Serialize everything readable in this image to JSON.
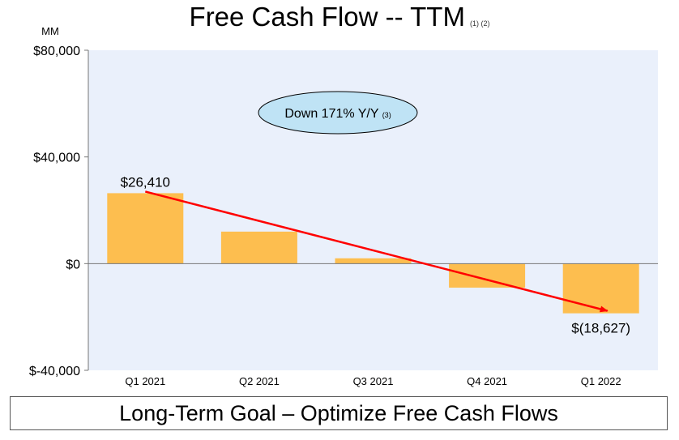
{
  "chart_data": {
    "type": "bar",
    "title": "Free Cash Flow -- TTM",
    "title_footnote": "(1) (2)",
    "ylabel": "MM",
    "ylim": [
      -40000,
      80000
    ],
    "yticks": [
      -40000,
      0,
      40000,
      80000
    ],
    "ytick_labels": [
      "$-40,000",
      "$0",
      "$40,000",
      "$80,000"
    ],
    "categories": [
      "Q1 2021",
      "Q2 2021",
      "Q3 2021",
      "Q4 2021",
      "Q1 2022"
    ],
    "values": [
      26410,
      12000,
      2000,
      -9000,
      -18627
    ],
    "data_labels": [
      {
        "category": "Q1 2021",
        "text": "$26,410"
      },
      {
        "category": "Q1 2022",
        "text": "$(18,627)"
      }
    ],
    "annotation": {
      "text": "Down 171% Y/Y",
      "footnote": "(3)"
    },
    "trend_arrow": {
      "from": {
        "category": "Q1 2021",
        "value": 26410
      },
      "to": {
        "category": "Q1 2022",
        "value": -18627
      }
    },
    "grid": false,
    "colors": {
      "bar": "#FDBE4F",
      "plot_bg": "#EAF0FB",
      "arrow": "#FF0000",
      "ellipse": "#BFE3F5",
      "axis": "#777777"
    }
  },
  "footer": {
    "goal": "Long-Term Goal – Optimize Free Cash Flows"
  }
}
